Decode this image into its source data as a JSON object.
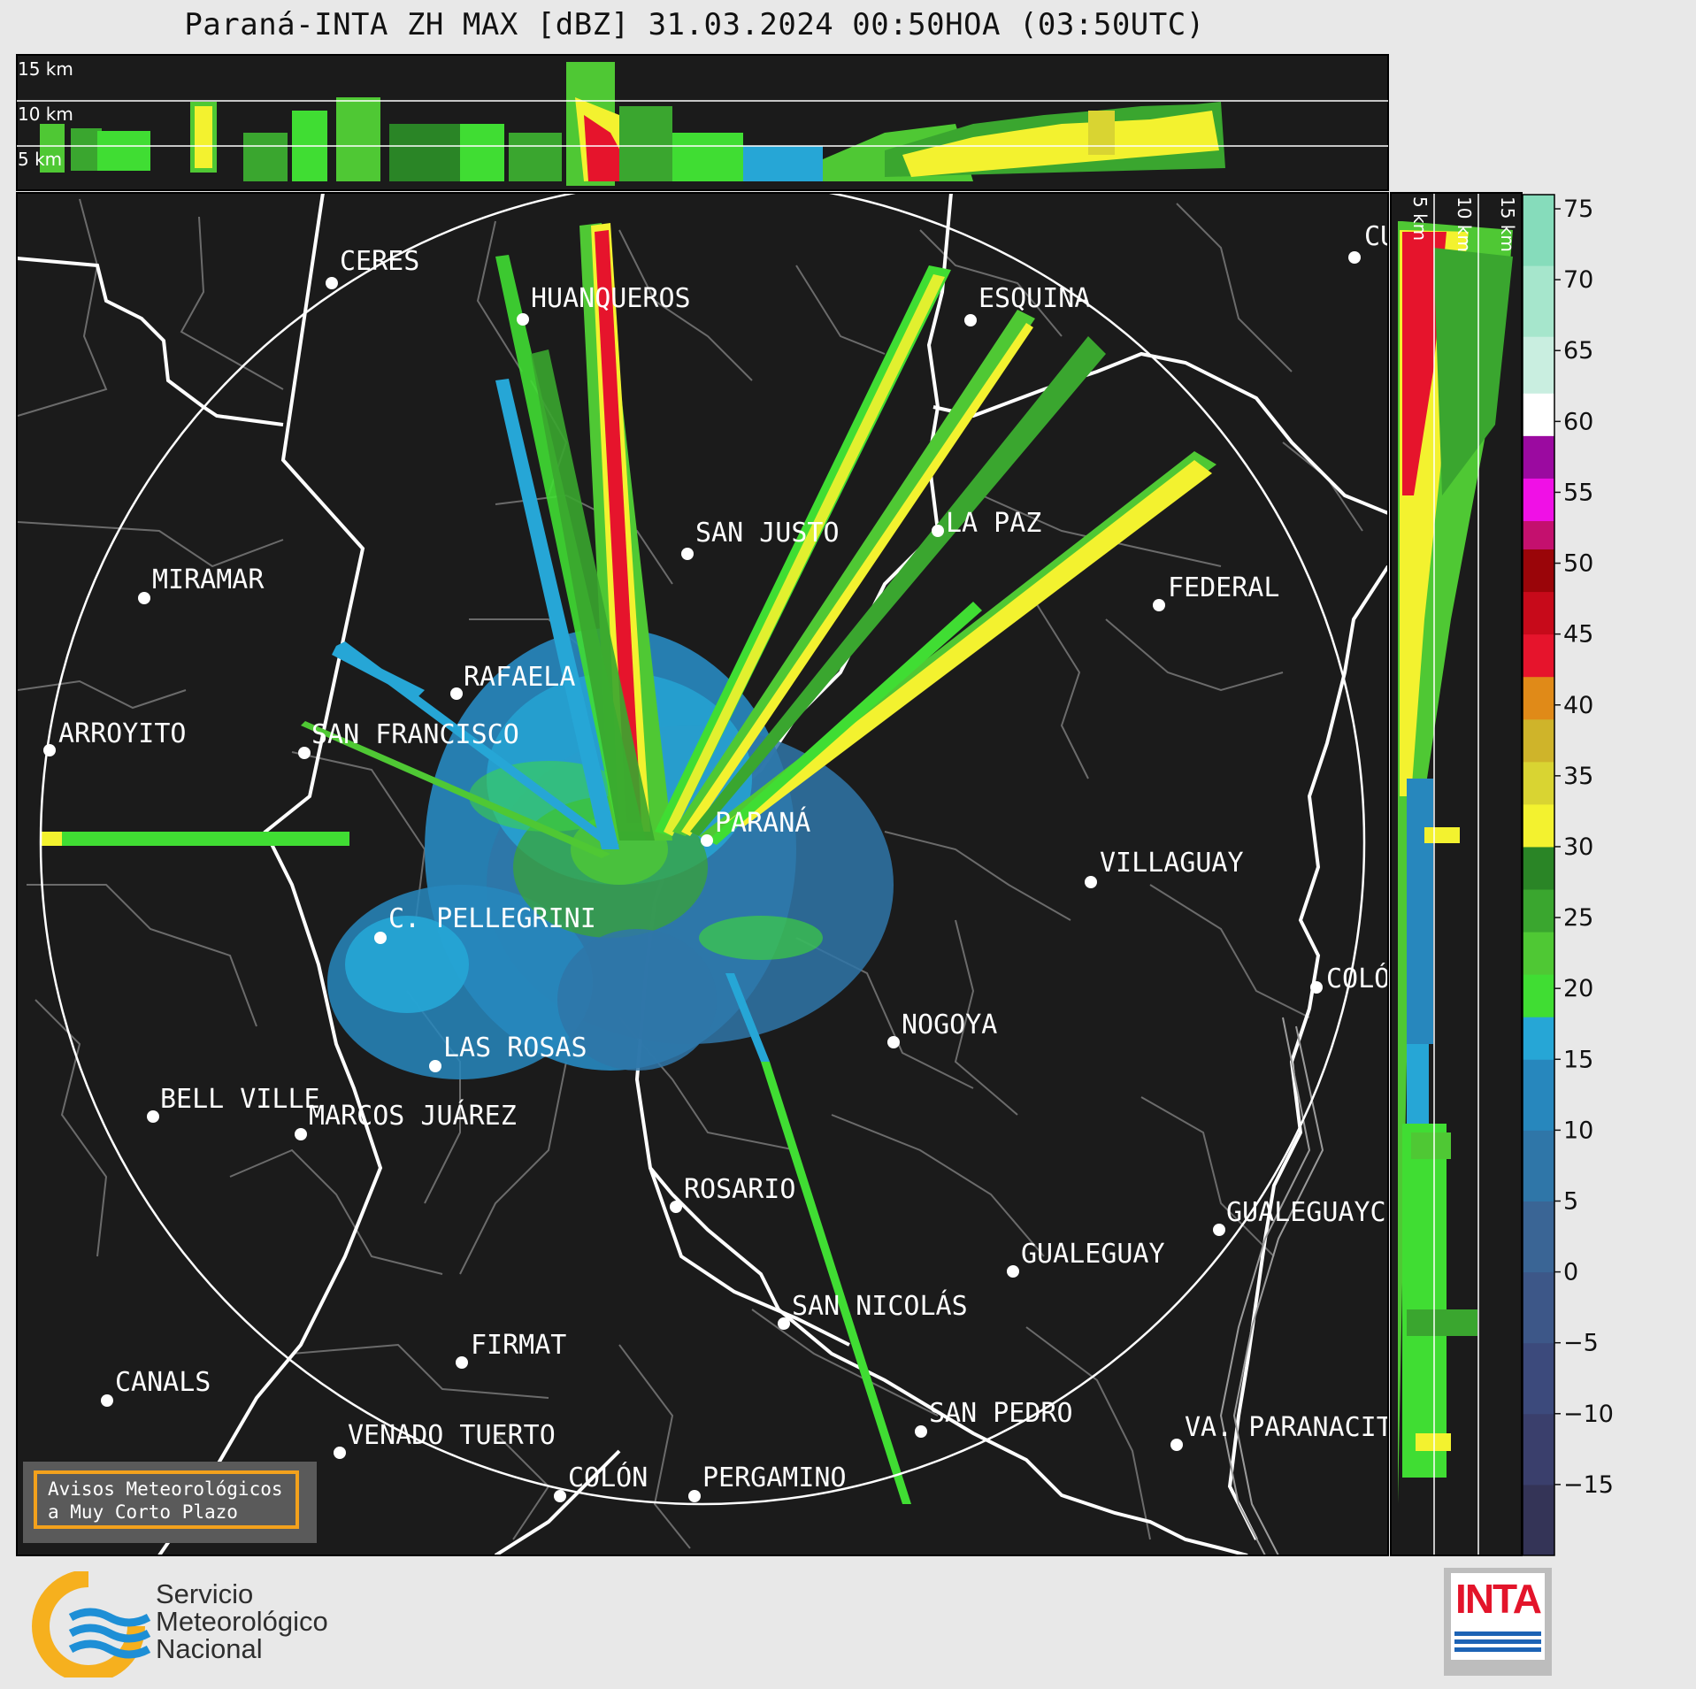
{
  "title": "Paraná-INTA ZH MAX [dBZ] 31.03.2024 00:50HOA (03:50UTC)",
  "top_panel": {
    "height_labels": [
      "15 km",
      "10 km",
      "5 km"
    ]
  },
  "side_panel": {
    "height_labels": [
      "5 km",
      "10 km",
      "15 km"
    ]
  },
  "colorbar": {
    "unit": "dBZ",
    "ticks": [
      "75",
      "70",
      "65",
      "60",
      "55",
      "50",
      "45",
      "40",
      "35",
      "30",
      "25",
      "20",
      "15",
      "10",
      "5",
      "0",
      "−5",
      "−10",
      "−15"
    ],
    "range": [
      -20,
      76
    ],
    "stops": [
      {
        "from": -20,
        "to": -15,
        "color": "#343457"
      },
      {
        "from": -15,
        "to": -10,
        "color": "#3a3f6c"
      },
      {
        "from": -10,
        "to": -5,
        "color": "#3c4a7c"
      },
      {
        "from": -5,
        "to": 0,
        "color": "#3d5788"
      },
      {
        "from": 0,
        "to": 5,
        "color": "#3a6595"
      },
      {
        "from": 5,
        "to": 10,
        "color": "#2f76a8"
      },
      {
        "from": 10,
        "to": 15,
        "color": "#2787bd"
      },
      {
        "from": 15,
        "to": 18,
        "color": "#26a6d6"
      },
      {
        "from": 18,
        "to": 21,
        "color": "#40dd33"
      },
      {
        "from": 21,
        "to": 24,
        "color": "#4fc834"
      },
      {
        "from": 24,
        "to": 27,
        "color": "#3aa62f"
      },
      {
        "from": 27,
        "to": 30,
        "color": "#2a8526"
      },
      {
        "from": 30,
        "to": 33,
        "color": "#f3f22f"
      },
      {
        "from": 33,
        "to": 36,
        "color": "#d9d432"
      },
      {
        "from": 36,
        "to": 39,
        "color": "#cfb42a"
      },
      {
        "from": 39,
        "to": 42,
        "color": "#e08a18"
      },
      {
        "from": 42,
        "to": 45,
        "color": "#e6142c"
      },
      {
        "from": 45,
        "to": 48,
        "color": "#c70a1a"
      },
      {
        "from": 48,
        "to": 51,
        "color": "#9a0509"
      },
      {
        "from": 51,
        "to": 53,
        "color": "#c4106e"
      },
      {
        "from": 53,
        "to": 56,
        "color": "#f010e6"
      },
      {
        "from": 56,
        "to": 59,
        "color": "#9b0aa0"
      },
      {
        "from": 59,
        "to": 62,
        "color": "#ffffff"
      },
      {
        "from": 62,
        "to": 66,
        "color": "#c9eee0"
      },
      {
        "from": 66,
        "to": 71,
        "color": "#a6e6cc"
      },
      {
        "from": 71,
        "to": 76,
        "color": "#86dcbb"
      }
    ]
  },
  "cities": [
    {
      "name": "CERES",
      "label": "CERES"
    },
    {
      "name": "HUANQUEROS",
      "label": "HUANQUEROS"
    },
    {
      "name": "ESQUINA",
      "label": "ESQUINA"
    },
    {
      "name": "CU",
      "label": "CU"
    },
    {
      "name": "SAN JUSTO",
      "label": "SAN JUSTO"
    },
    {
      "name": "LA PAZ",
      "label": "LA PAZ"
    },
    {
      "name": "MIRAMAR",
      "label": "MIRAMAR"
    },
    {
      "name": "FEDERAL",
      "label": "FEDERAL"
    },
    {
      "name": "RAFAELA",
      "label": "RAFAELA"
    },
    {
      "name": "ARROYITO",
      "label": "ARROYITO"
    },
    {
      "name": "SAN FRANCISCO",
      "label": "SAN FRANCISCO"
    },
    {
      "name": "PARANÁ",
      "label": "PARANÁ"
    },
    {
      "name": "VILLAGUAY",
      "label": "VILLAGUAY"
    },
    {
      "name": "C. PELLEGRINI",
      "label": "C. PELLEGRINI"
    },
    {
      "name": "COLÓN E",
      "label": "COLÓ"
    },
    {
      "name": "NOGOYA",
      "label": "NOGOYA"
    },
    {
      "name": "LAS ROSAS",
      "label": "LAS ROSAS"
    },
    {
      "name": "BELL VILLE",
      "label": "BELL VILLE"
    },
    {
      "name": "MARCOS JUÁREZ",
      "label": "MARCOS JUÁREZ"
    },
    {
      "name": "ROSARIO",
      "label": "ROSARIO"
    },
    {
      "name": "GUALEGUAYC",
      "label": "GUALEGUAYC"
    },
    {
      "name": "GUALEGUAY",
      "label": "GUALEGUAY"
    },
    {
      "name": "SAN NICOLÁS",
      "label": "SAN NICOLÁS"
    },
    {
      "name": "FIRMAT",
      "label": "FIRMAT"
    },
    {
      "name": "CANALS",
      "label": "CANALS"
    },
    {
      "name": "SAN PEDRO",
      "label": "SAN PEDRO"
    },
    {
      "name": "VENADO TUERTO",
      "label": "VENADO TUERTO"
    },
    {
      "name": "VA. PARANACIT",
      "label": "VA. PARANACIT"
    },
    {
      "name": "COLÓN",
      "label": "COLÓN"
    },
    {
      "name": "PERGAMINO",
      "label": "PERGAMINO"
    }
  ],
  "warning_box": {
    "line1": "Avisos Meteorológicos",
    "line2": "a Muy Corto Plazo"
  },
  "smn_logo": {
    "line1": "Servicio",
    "line2": "Meteorológico",
    "line3": "Nacional"
  },
  "inta_logo": {
    "text": "INTA"
  },
  "colors": {
    "map_bg": "#1b1b1b",
    "page_bg": "#e8e8e8",
    "warning_border": "#f3a11c"
  }
}
